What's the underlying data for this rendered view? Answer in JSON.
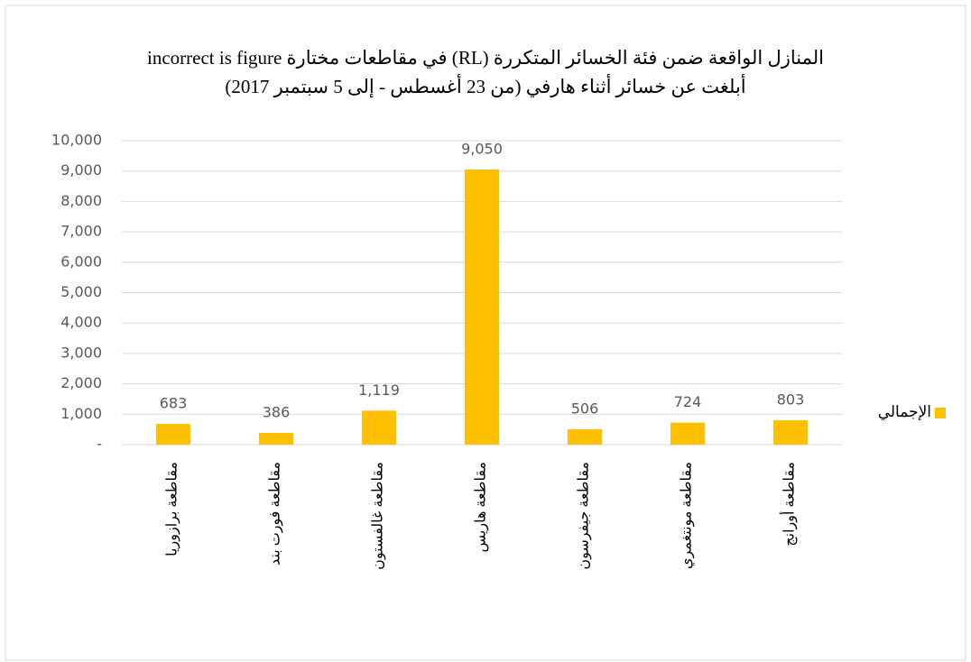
{
  "chart_data": {
    "type": "bar",
    "title": [
      "المنازل الواقعة ضمن فئة الخسائر المتكررة (RL) في مقاطعات مختارة incorrect is figure",
      "أبلغت عن خسائر أثناء هارفي (من 23 أغسطس - إلى 5 سبتمبر 2017)"
    ],
    "categories": [
      "مقاطعة برازوريا",
      "مقاطعة فورت بند",
      "مقاطعة غالفستون",
      "مقاطعة هاريس",
      "مقاطعة جيفرسون",
      "مقاطعة مونتغمري",
      "مقاطعة أورانج"
    ],
    "series": [
      {
        "name": "الإجمالي",
        "color": "#FFC000",
        "values": [
          683,
          386,
          1119,
          9050,
          506,
          724,
          803
        ],
        "value_labels": [
          "683",
          "386",
          "1,119",
          "9,050",
          "506",
          "724",
          "803"
        ]
      }
    ],
    "ylim": [
      0,
      10000
    ],
    "yticks": [
      {
        "value": 0,
        "label": "-"
      },
      {
        "value": 1000,
        "label": "1,000"
      },
      {
        "value": 2000,
        "label": "2,000"
      },
      {
        "value": 3000,
        "label": "3,000"
      },
      {
        "value": 4000,
        "label": "4,000"
      },
      {
        "value": 5000,
        "label": "5,000"
      },
      {
        "value": 6000,
        "label": "6,000"
      },
      {
        "value": 7000,
        "label": "7,000"
      },
      {
        "value": 8000,
        "label": "8,000"
      },
      {
        "value": 9000,
        "label": "9,000"
      },
      {
        "value": 10000,
        "label": "10,000"
      }
    ],
    "grid": true,
    "legend": "right"
  }
}
